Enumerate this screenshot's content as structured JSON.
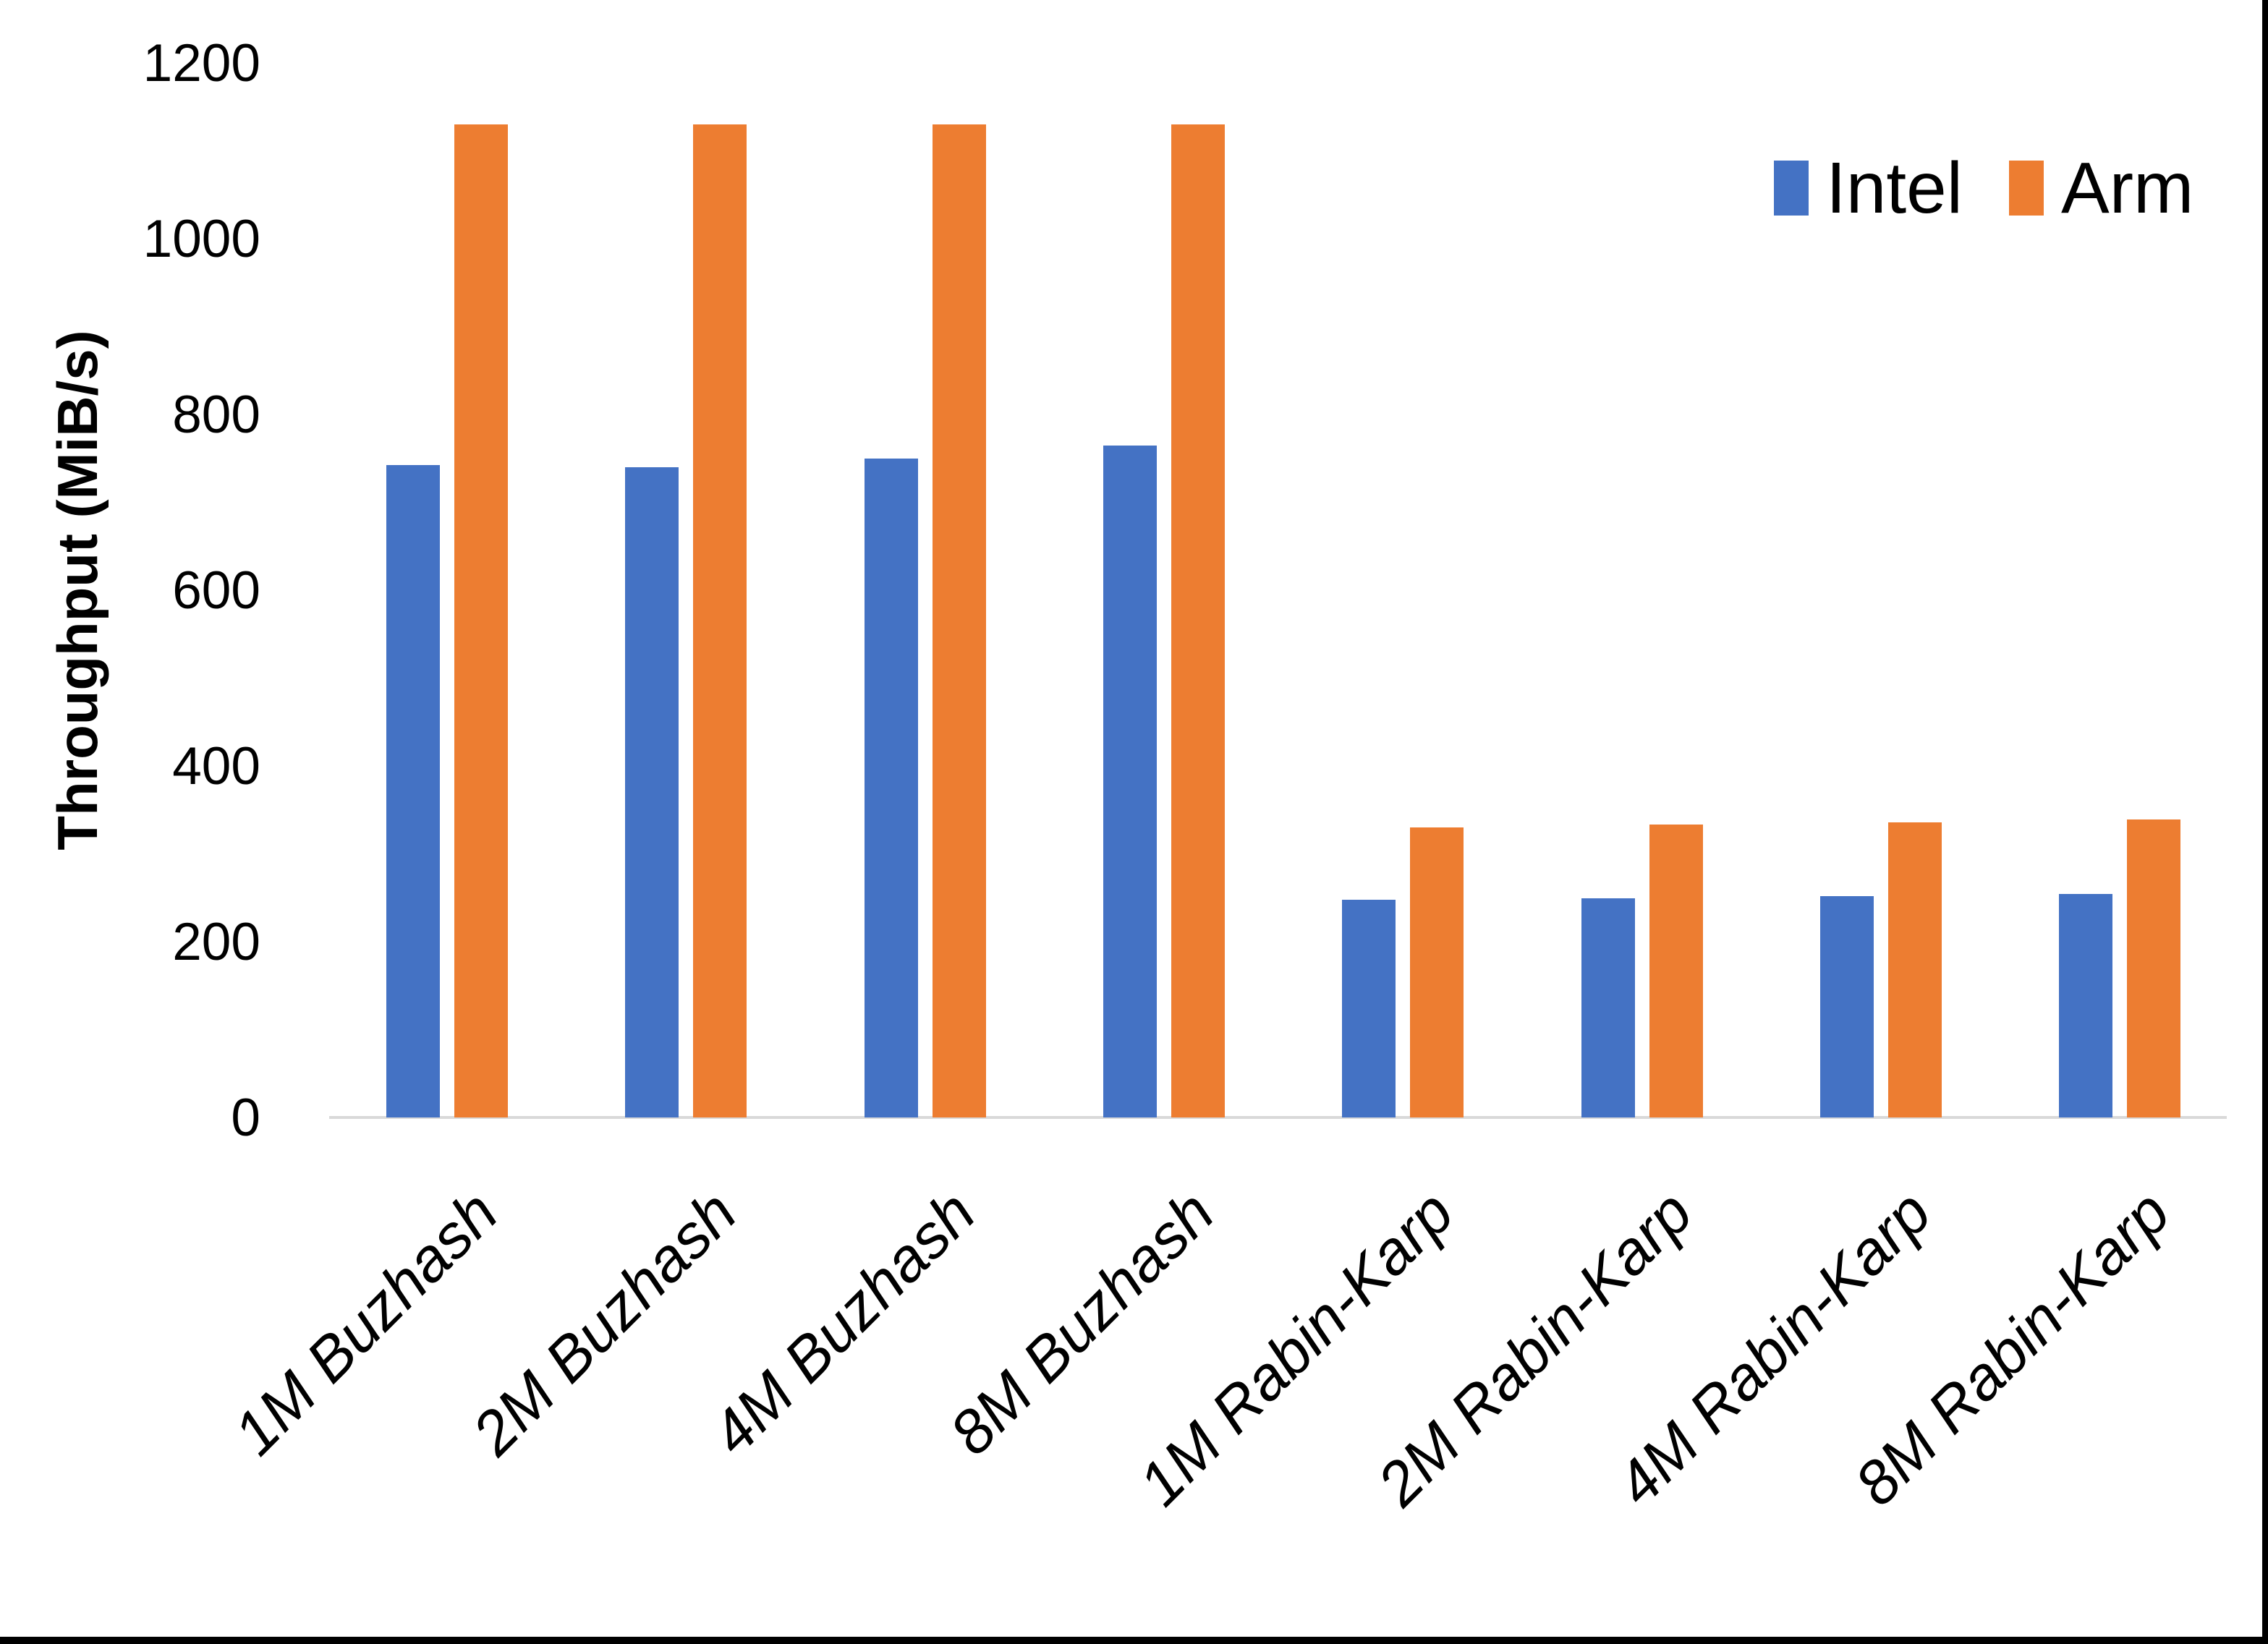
{
  "chart_data": {
    "type": "bar",
    "title": "",
    "ylabel": "Throughput (MiB/s)",
    "xlabel": "",
    "ylim": [
      0,
      1200
    ],
    "yticks": [
      0,
      200,
      400,
      600,
      800,
      1000,
      1200
    ],
    "grid": false,
    "legend_position": "top-right",
    "categories": [
      "1M Buzhash",
      "2M Buzhash",
      "4M Buzhash",
      "8M Buzhash",
      "1M Rabin-Karp",
      "2M Rabin-Karp",
      "4M Rabin-Karp",
      "8M Rabin-Karp"
    ],
    "series": [
      {
        "name": "Intel",
        "color": "#4472C4",
        "values": [
          742,
          740,
          750,
          765,
          248,
          249,
          252,
          254
        ]
      },
      {
        "name": "Arm",
        "color": "#ED7D31",
        "values": [
          1130,
          1130,
          1130,
          1130,
          330,
          333,
          336,
          339
        ]
      }
    ],
    "axis_line_color": "#D9D9D9",
    "background_color": "#FFFFFF",
    "text_color": "#000000",
    "frame_color": "#000000"
  }
}
